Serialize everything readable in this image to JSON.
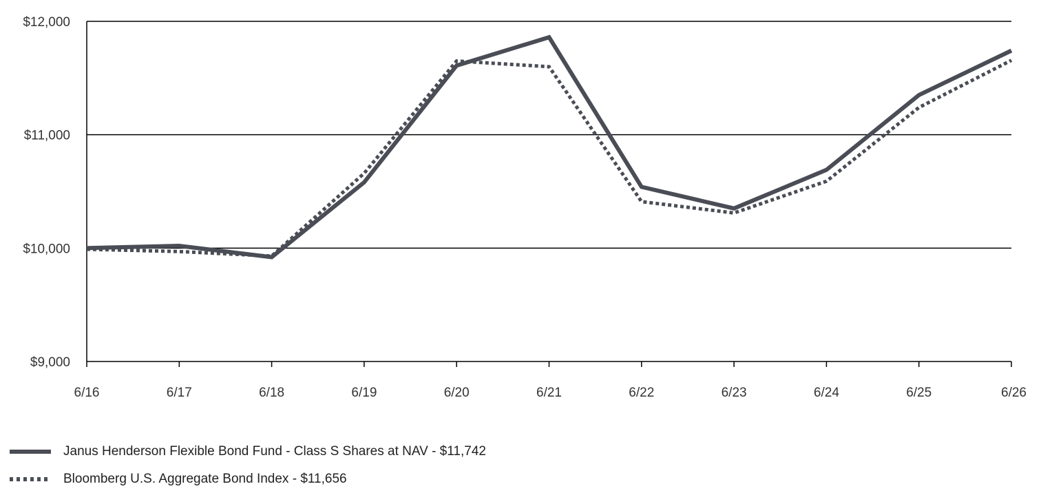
{
  "colors": {
    "series": "#4a4d55",
    "grid": "#000000",
    "text": "#333333"
  },
  "chart_data": {
    "type": "line",
    "x": [
      "6/16",
      "6/17",
      "6/18",
      "6/19",
      "6/20",
      "6/21",
      "6/22",
      "6/23",
      "6/24",
      "6/25",
      "6/26"
    ],
    "ylim": [
      9000,
      12000
    ],
    "y_ticks": [
      9000,
      10000,
      11000,
      12000
    ],
    "y_tick_labels": [
      "$9,000",
      "$10,000",
      "$11,000",
      "$12,000"
    ],
    "grid": true,
    "legend_position": "bottom-left",
    "series": [
      {
        "name": "Janus Henderson Flexible Bond Fund - Class S Shares at NAV - $11,742",
        "style": "solid",
        "values": [
          10000,
          10020,
          9920,
          10580,
          11610,
          11860,
          10540,
          10350,
          10690,
          11350,
          11742
        ]
      },
      {
        "name": "Bloomberg U.S. Aggregate Bond Index - $11,656",
        "style": "dotted",
        "values": [
          9990,
          9970,
          9930,
          10660,
          11650,
          11600,
          10410,
          10310,
          10590,
          11240,
          11656
        ]
      }
    ]
  }
}
